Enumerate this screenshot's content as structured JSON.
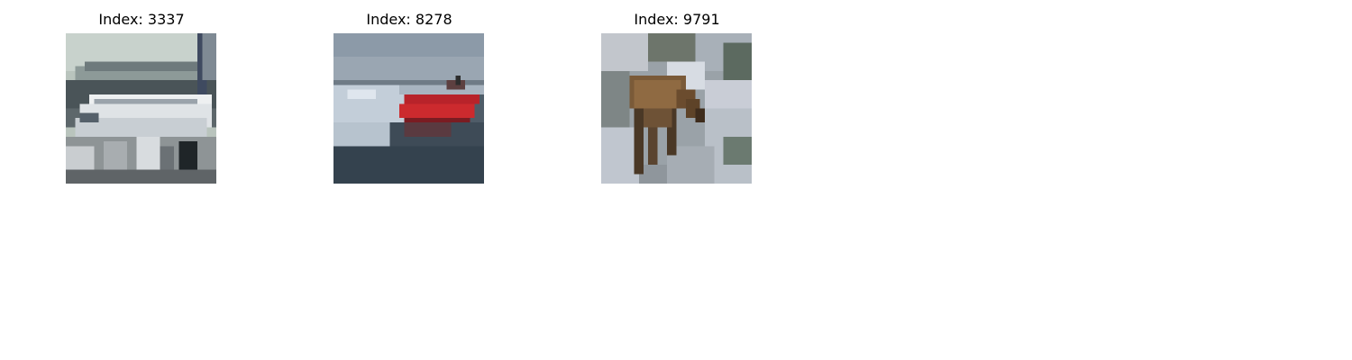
{
  "figure": {
    "panels": [
      {
        "title": "Index: 3337",
        "subject": "airplane"
      },
      {
        "title": "Index: 8278",
        "subject": "ship"
      },
      {
        "title": "Index: 9791",
        "subject": "deer"
      }
    ]
  }
}
